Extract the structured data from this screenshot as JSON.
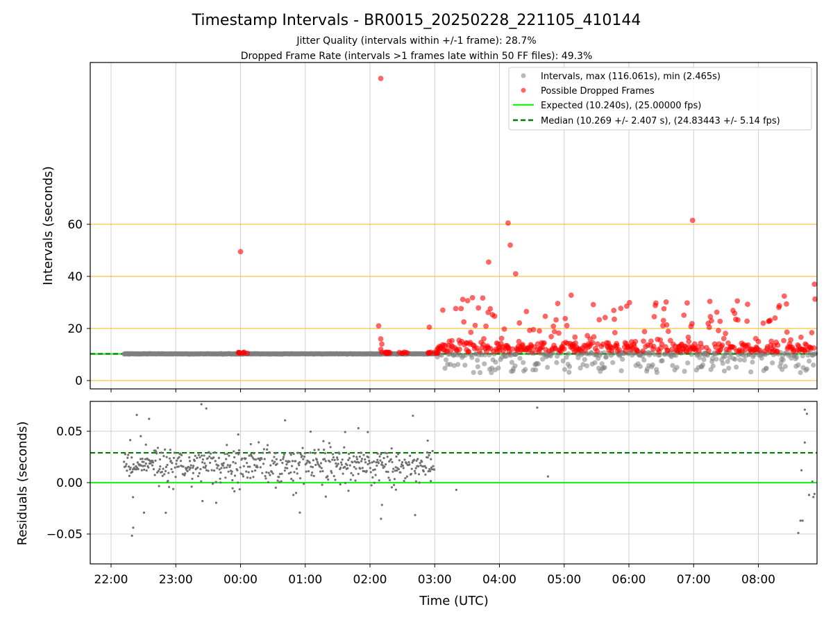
{
  "title": "Timestamp Intervals - BR0015_20250228_221105_410144",
  "subtitle_1": "Jitter Quality (intervals within +/-1 frame): 28.7%",
  "subtitle_2": "Dropped Frame Rate (intervals >1 frames late within 50 FF files): 49.3%",
  "colors": {
    "intervals": "#808080",
    "dropped": "#ff0000",
    "expected": "#22ee22",
    "median": "#007a00",
    "threshold": "#ffc040",
    "grid": "#cfcfcf"
  },
  "chart_data": [
    {
      "type": "scatter",
      "ylabel": "Intervals (seconds)",
      "yticks": [
        0,
        20,
        40,
        60
      ],
      "ylim": [
        -3,
        122
      ],
      "threshold_lines": [
        0,
        20,
        40,
        60
      ],
      "grid": true,
      "legend_position": "top-right",
      "legend": {
        "intervals": "Intervals, max (116.061s), min (2.465s)",
        "dropped": "Possible Dropped Frames",
        "expected": "Expected (10.240s), (25.00000 fps)",
        "median": "Median (10.269 +/- 2.407 s), (24.83443 +/- 5.14 fps)"
      },
      "series": [
        {
          "name": "Intervals, max (116.061s), min (2.465s)",
          "x_range": [
            "22:12",
            "08:53"
          ],
          "min": 2.465,
          "max": 116.061
        },
        {
          "name": "Possible Dropped Frames",
          "points": [
            {
              "x": "00:00",
              "y": 49.5
            },
            {
              "x": "02:08",
              "y": 21.0
            },
            {
              "x": "02:10",
              "y": 116.0
            },
            {
              "x": "02:55",
              "y": 20.5
            },
            {
              "x": "03:50",
              "y": 45.5
            },
            {
              "x": "04:08",
              "y": 60.5
            },
            {
              "x": "04:10",
              "y": 52.0
            },
            {
              "x": "04:15",
              "y": 41.0
            },
            {
              "x": "06:59",
              "y": 61.5
            },
            {
              "x": "08:52",
              "y": 37.0
            }
          ]
        },
        {
          "name": "Expected (10.240s), (25.00000 fps)",
          "y": 10.24
        },
        {
          "name": "Median (10.269 +/- 2.407 s), (24.83443 +/- 5.14 fps)",
          "y": 10.269
        }
      ]
    },
    {
      "type": "scatter",
      "xlabel": "Time (UTC)",
      "ylabel": "Residuals (seconds)",
      "xticks": [
        "22:00",
        "23:00",
        "00:00",
        "01:00",
        "02:00",
        "03:00",
        "04:00",
        "05:00",
        "06:00",
        "07:00",
        "08:00"
      ],
      "yticks": [
        "0.05",
        "0.00",
        "−0.05"
      ],
      "ylim": [
        -0.08,
        0.08
      ],
      "grid": true,
      "series": [
        {
          "name": "Expected",
          "y": 0.0
        },
        {
          "name": "Median",
          "y": 0.029
        }
      ]
    }
  ]
}
